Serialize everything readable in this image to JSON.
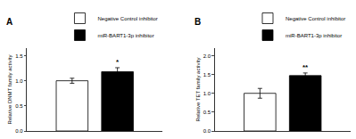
{
  "chart_data": [
    {
      "type": "bar",
      "title": "A",
      "ylabel": "Relative DNMT family activity",
      "categories": [
        null
      ],
      "series": [
        {
          "name": "Negative Control inhibitor",
          "color": "white",
          "values": [
            1.0
          ],
          "errors": [
            0.05
          ]
        },
        {
          "name": "miR-BART1-3p inhibitor",
          "color": "black",
          "values": [
            1.18
          ],
          "errors": [
            0.08
          ]
        }
      ],
      "annotations": [
        {
          "text": "*",
          "series": "miR-BART1-3p inhibitor"
        }
      ],
      "ylim": [
        0,
        1.65
      ],
      "yticks": [
        {
          "value": 0,
          "label": "0.0"
        },
        0.5,
        {
          "value": 1,
          "label": "1.0"
        },
        1.5
      ],
      "grid": false,
      "legend": "upper right",
      "tick_labels": "y"
    },
    {
      "type": "bar",
      "title": "B",
      "ylabel": "Relative TET family activity",
      "categories": [
        null
      ],
      "series": [
        {
          "name": "Negative Control inhibitor",
          "color": "white",
          "values": [
            1.0
          ],
          "errors": [
            0.13
          ]
        },
        {
          "name": "miR-BART1-3p inhibitor",
          "color": "black",
          "values": [
            1.47
          ],
          "errors": [
            0.07
          ]
        }
      ],
      "annotations": [
        {
          "text": "**",
          "series": "miR-BART1-3p inhibitor"
        }
      ],
      "ylim": [
        0,
        2.2
      ],
      "yticks": [
        {
          "value": 0,
          "label": "0.0"
        },
        0.5,
        {
          "value": 1,
          "label": "1.0"
        },
        1.5,
        {
          "value": 2,
          "label": "2.0"
        }
      ],
      "grid": false,
      "legend": "upper right",
      "tick_labels": "y"
    }
  ]
}
